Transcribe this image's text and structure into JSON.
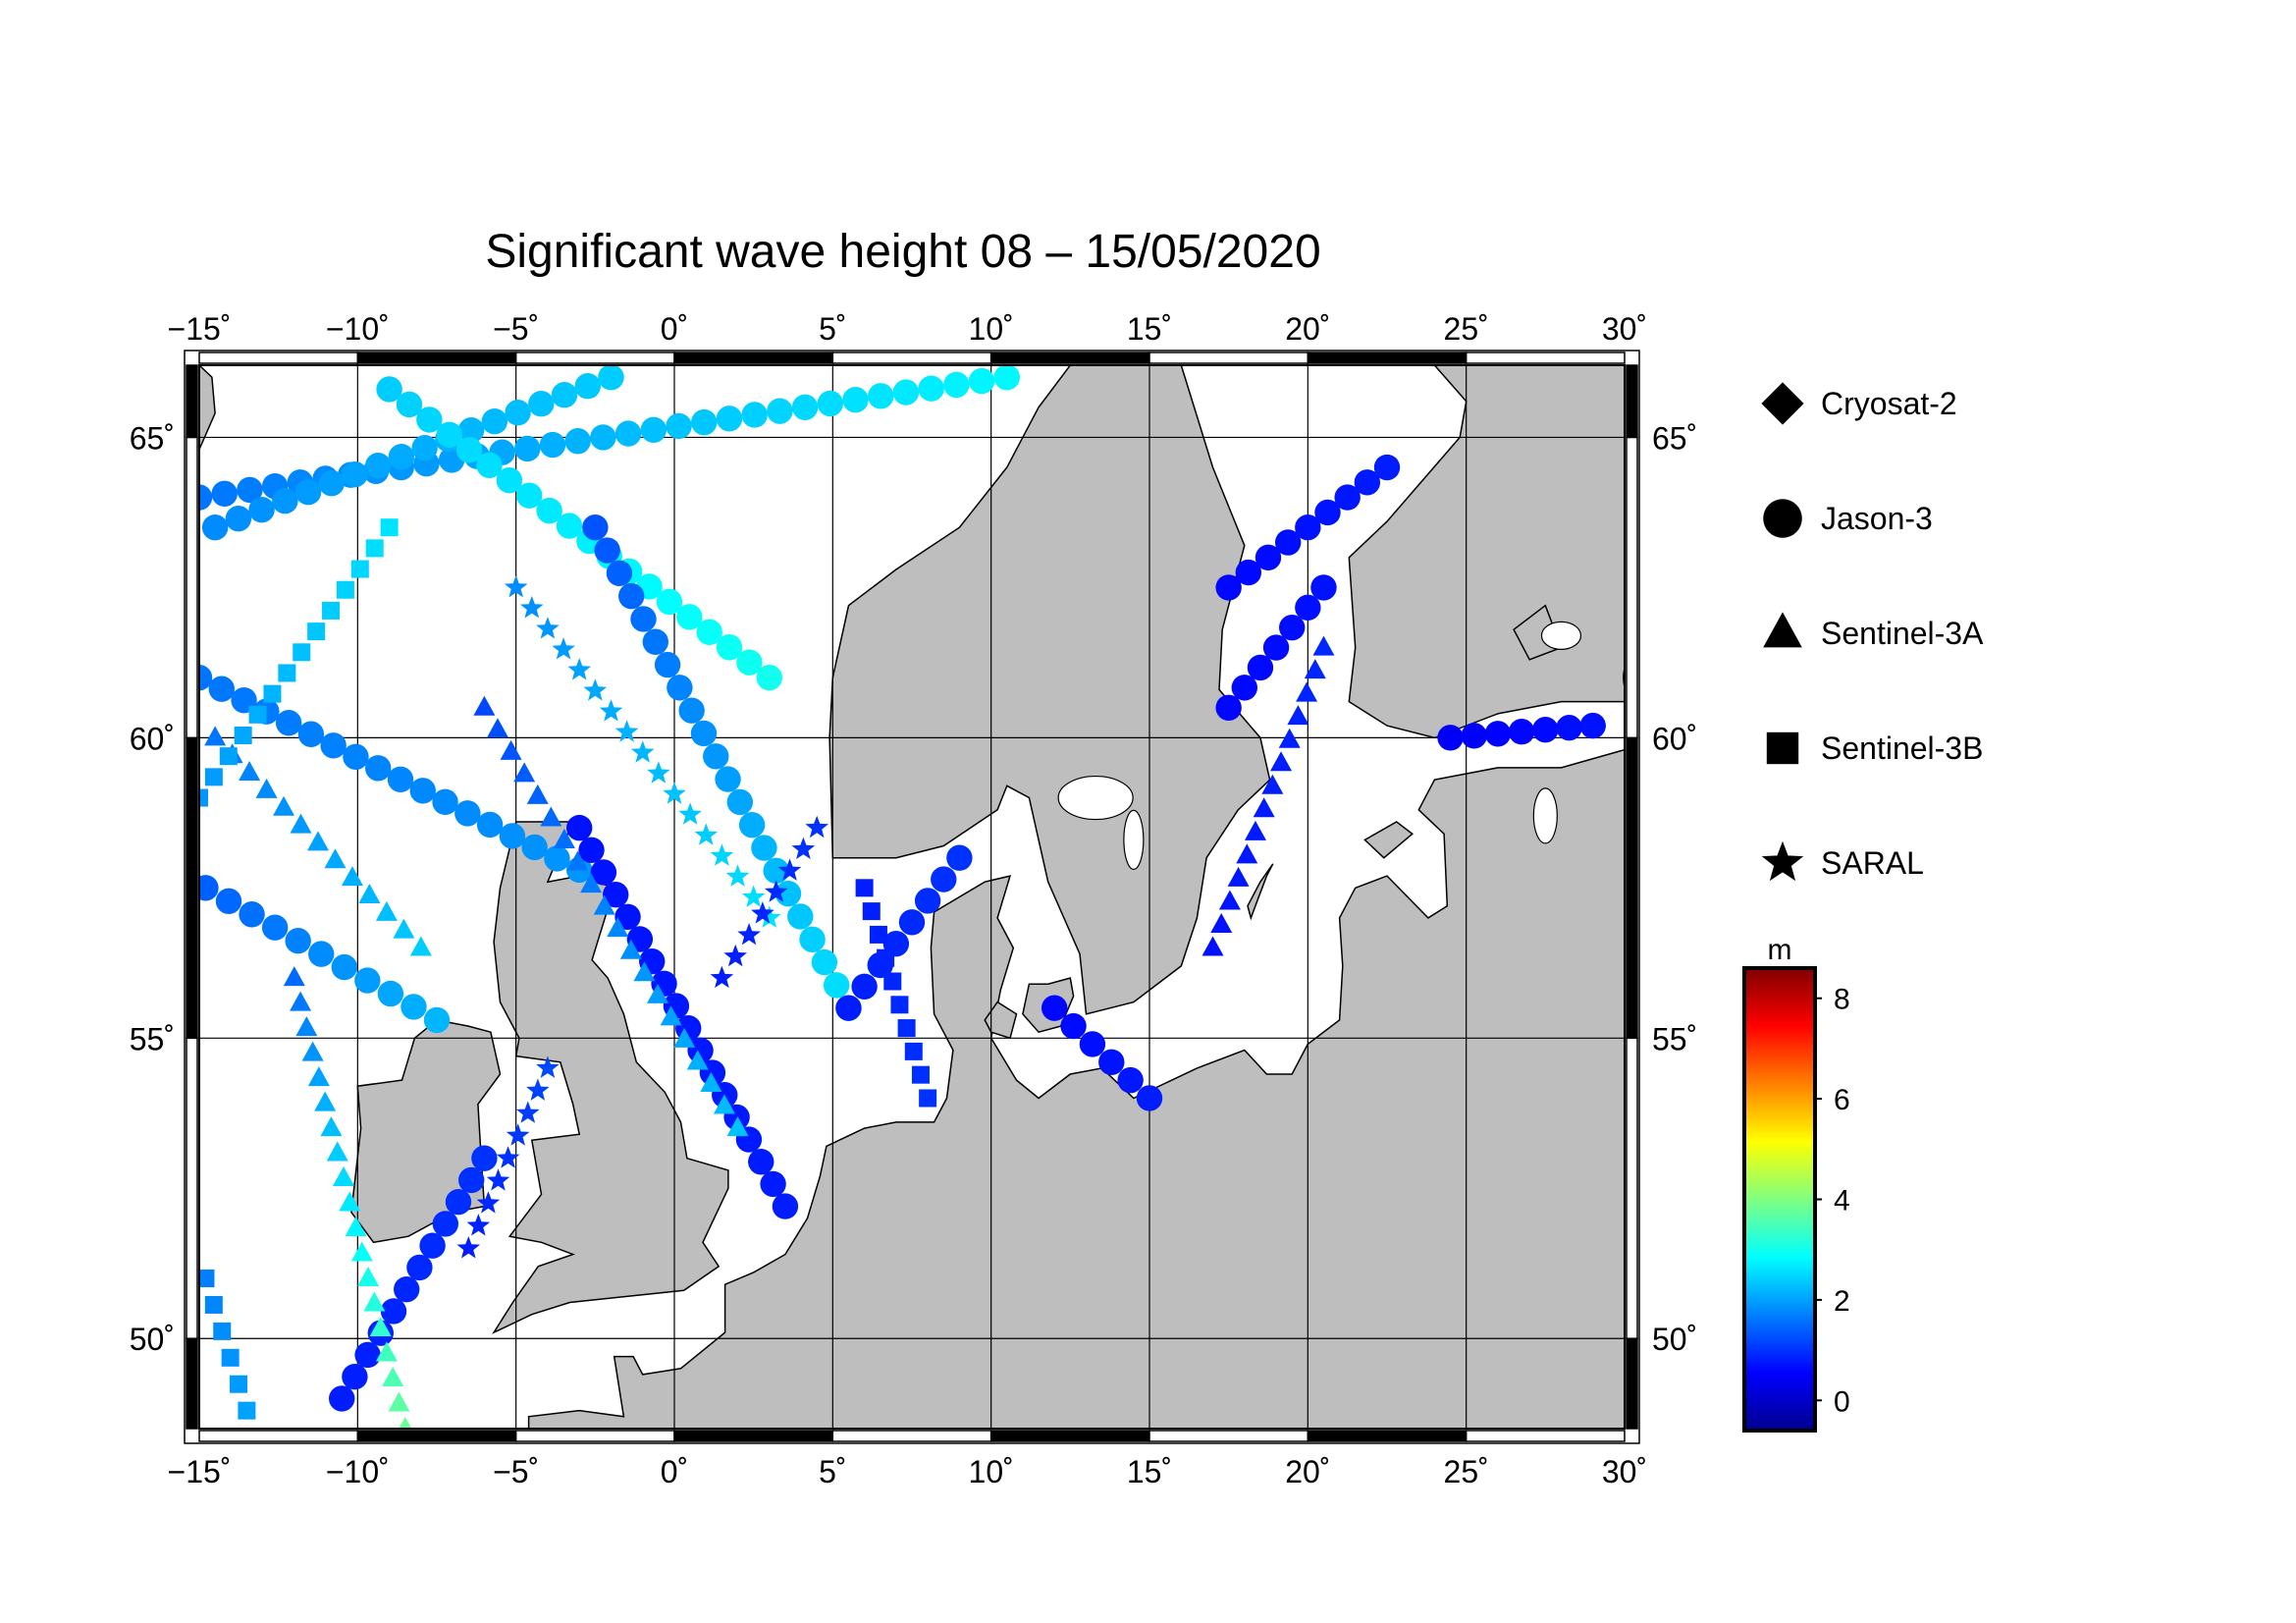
{
  "title": "Significant wave height 08 – 15/05/2020",
  "map": {
    "lon_range": [
      -15,
      30
    ],
    "lat_range": [
      48.5,
      66.2
    ],
    "lon_ticks": [
      -15,
      -10,
      -5,
      0,
      5,
      10,
      15,
      20,
      25,
      30
    ],
    "lon_labels": [
      "−15˚",
      "−10˚",
      "−5˚",
      "0˚",
      "5˚",
      "10˚",
      "15˚",
      "20˚",
      "25˚",
      "30˚"
    ],
    "lat_ticks": [
      50,
      55,
      60,
      65
    ],
    "lat_labels": [
      "50˚",
      "55˚",
      "60˚",
      "65˚"
    ],
    "land_color": "#bebebe",
    "ocean_color": "#ffffff"
  },
  "legend": {
    "items": [
      {
        "label": "Cryosat-2",
        "symbol": "diamond"
      },
      {
        "label": "Jason-3",
        "symbol": "circle"
      },
      {
        "label": "Sentinel-3A",
        "symbol": "triangle"
      },
      {
        "label": "Sentinel-3B",
        "symbol": "square"
      },
      {
        "label": "SARAL",
        "symbol": "star"
      }
    ]
  },
  "colorbar": {
    "unit": "m",
    "range": [
      -0.6,
      8.6
    ],
    "ticks": [
      0,
      2,
      4,
      6,
      8
    ],
    "tick_labels": [
      "0",
      "2",
      "4",
      "6",
      "8"
    ],
    "colors": [
      "#00008f",
      "#0000ff",
      "#0080ff",
      "#00ffff",
      "#80ff80",
      "#ffff00",
      "#ff8000",
      "#ff0000",
      "#800000"
    ]
  },
  "chart_data": {
    "type": "scatter",
    "title": "Significant wave height 08 – 15/05/2020",
    "xlabel": "",
    "ylabel": "",
    "xlim": [
      -15,
      30
    ],
    "ylim": [
      48.5,
      66.2
    ],
    "tracks": [
      {
        "satellite": "Jason-3",
        "from": [
          -15.0,
          64.0
        ],
        "to": [
          10.5,
          66.0
        ],
        "swh": [
          1.6,
          2.8
        ]
      },
      {
        "satellite": "Jason-3",
        "from": [
          -14.5,
          63.5
        ],
        "to": [
          -2.0,
          66.0
        ],
        "swh": [
          1.8,
          2.4
        ]
      },
      {
        "satellite": "Jason-3",
        "from": [
          -9.0,
          65.8
        ],
        "to": [
          3.0,
          61.0
        ],
        "swh": [
          2.4,
          3.0
        ]
      },
      {
        "satellite": "Jason-3",
        "from": [
          -15.0,
          61.0
        ],
        "to": [
          -3.0,
          57.8
        ],
        "swh": [
          1.6,
          1.9
        ]
      },
      {
        "satellite": "Jason-3",
        "from": [
          -14.8,
          57.5
        ],
        "to": [
          -7.5,
          55.3
        ],
        "swh": [
          1.4,
          2.2
        ]
      },
      {
        "satellite": "Jason-3",
        "from": [
          -3.0,
          58.5
        ],
        "to": [
          3.5,
          52.2
        ],
        "swh": [
          0.7,
          0.8
        ]
      },
      {
        "satellite": "Jason-3",
        "from": [
          -2.5,
          63.5
        ],
        "to": [
          5.5,
          55.5
        ],
        "swh": [
          1.3,
          2.6
        ]
      },
      {
        "satellite": "Jason-3",
        "from": [
          5.5,
          55.5
        ],
        "to": [
          9.0,
          58.0
        ],
        "swh": [
          0.8,
          1.0
        ]
      },
      {
        "satellite": "Jason-3",
        "from": [
          12.0,
          55.5
        ],
        "to": [
          15.0,
          54.0
        ],
        "swh": [
          0.6,
          0.8
        ]
      },
      {
        "satellite": "Jason-3",
        "from": [
          17.5,
          62.5
        ],
        "to": [
          22.5,
          64.5
        ],
        "swh": [
          0.6,
          0.8
        ]
      },
      {
        "satellite": "Jason-3",
        "from": [
          17.5,
          60.5
        ],
        "to": [
          20.5,
          62.5
        ],
        "swh": [
          0.6,
          0.7
        ]
      },
      {
        "satellite": "Jason-3",
        "from": [
          24.5,
          60.0
        ],
        "to": [
          29.0,
          60.2
        ],
        "swh": [
          0.5,
          0.7
        ]
      },
      {
        "satellite": "Jason-3",
        "from": [
          -10.5,
          49.0
        ],
        "to": [
          -6.0,
          53.0
        ],
        "swh": [
          0.8,
          1.0
        ]
      },
      {
        "satellite": "Sentinel-3A",
        "from": [
          -14.5,
          60.0
        ],
        "to": [
          -8.0,
          56.5
        ],
        "swh": [
          1.6,
          2.4
        ]
      },
      {
        "satellite": "Sentinel-3A",
        "from": [
          -6.0,
          60.5
        ],
        "to": [
          2.0,
          53.5
        ],
        "swh": [
          1.2,
          2.3
        ]
      },
      {
        "satellite": "Sentinel-3A",
        "from": [
          17.0,
          56.5
        ],
        "to": [
          20.5,
          61.5
        ],
        "swh": [
          0.7,
          0.9
        ]
      },
      {
        "satellite": "Sentinel-3A",
        "from": [
          -12.0,
          56.0
        ],
        "to": [
          -8.5,
          48.5
        ],
        "swh": [
          1.5,
          3.8
        ]
      },
      {
        "satellite": "Sentinel-3B",
        "from": [
          -15.0,
          59.0
        ],
        "to": [
          -9.0,
          63.5
        ],
        "swh": [
          1.9,
          2.6
        ]
      },
      {
        "satellite": "Sentinel-3B",
        "from": [
          6.0,
          57.5
        ],
        "to": [
          8.0,
          54.0
        ],
        "swh": [
          0.8,
          1.0
        ]
      },
      {
        "satellite": "Sentinel-3B",
        "from": [
          -14.8,
          51.0
        ],
        "to": [
          -13.5,
          48.8
        ],
        "swh": [
          1.7,
          2.0
        ]
      },
      {
        "satellite": "SARAL",
        "from": [
          -5.0,
          62.5
        ],
        "to": [
          3.0,
          57.0
        ],
        "swh": [
          1.8,
          2.6
        ]
      },
      {
        "satellite": "SARAL",
        "from": [
          -6.5,
          51.5
        ],
        "to": [
          -4.0,
          54.5
        ],
        "swh": [
          0.8,
          1.2
        ]
      },
      {
        "satellite": "SARAL",
        "from": [
          1.5,
          56.0
        ],
        "to": [
          4.5,
          58.5
        ],
        "swh": [
          0.8,
          1.0
        ]
      }
    ]
  }
}
